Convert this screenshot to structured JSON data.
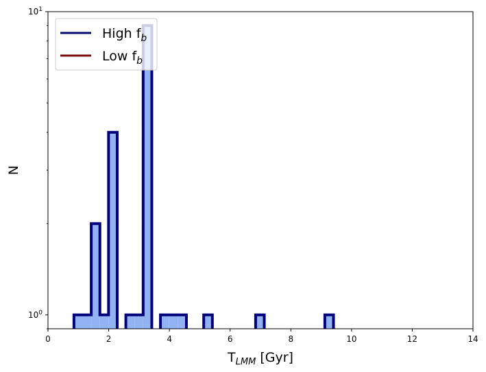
{
  "chart_data": {
    "type": "bar",
    "xlabel": {
      "main": "T",
      "sub": "LMM",
      "unit": " [Gyr]"
    },
    "ylabel": "N",
    "xlim": [
      0,
      14
    ],
    "ylim": [
      0.9,
      10
    ],
    "yscale": "log",
    "xticks": [
      "0",
      "2",
      "4",
      "6",
      "8",
      "10",
      "12",
      "14"
    ],
    "yticks": [
      {
        "value": 1,
        "base": "10",
        "exp": "0"
      },
      {
        "value": 10,
        "base": "10",
        "exp": "1"
      }
    ],
    "grid": false,
    "legend": {
      "placement": "top-left",
      "entries": [
        {
          "main": "High f",
          "sub": "b",
          "color": "#0a0a6e"
        },
        {
          "main": "Low f",
          "sub": "b",
          "color": "#7a0c0c"
        }
      ]
    },
    "bin_width": 0.285,
    "bins": [
      {
        "x0": 0.855,
        "value": 1
      },
      {
        "x0": 1.14,
        "value": 1
      },
      {
        "x0": 1.425,
        "value": 2
      },
      {
        "x0": 1.71,
        "value": 1
      },
      {
        "x0": 1.995,
        "value": 4
      },
      {
        "x0": 2.565,
        "value": 1
      },
      {
        "x0": 2.85,
        "value": 1
      },
      {
        "x0": 3.135,
        "value": 9
      },
      {
        "x0": 3.705,
        "value": 1
      },
      {
        "x0": 3.99,
        "value": 1
      },
      {
        "x0": 4.275,
        "value": 1
      },
      {
        "x0": 5.13,
        "value": 1
      },
      {
        "x0": 6.84,
        "value": 1
      },
      {
        "x0": 9.12,
        "value": 1
      }
    ],
    "fill_color": "#92b2f2",
    "edge_color": "#00007a"
  }
}
